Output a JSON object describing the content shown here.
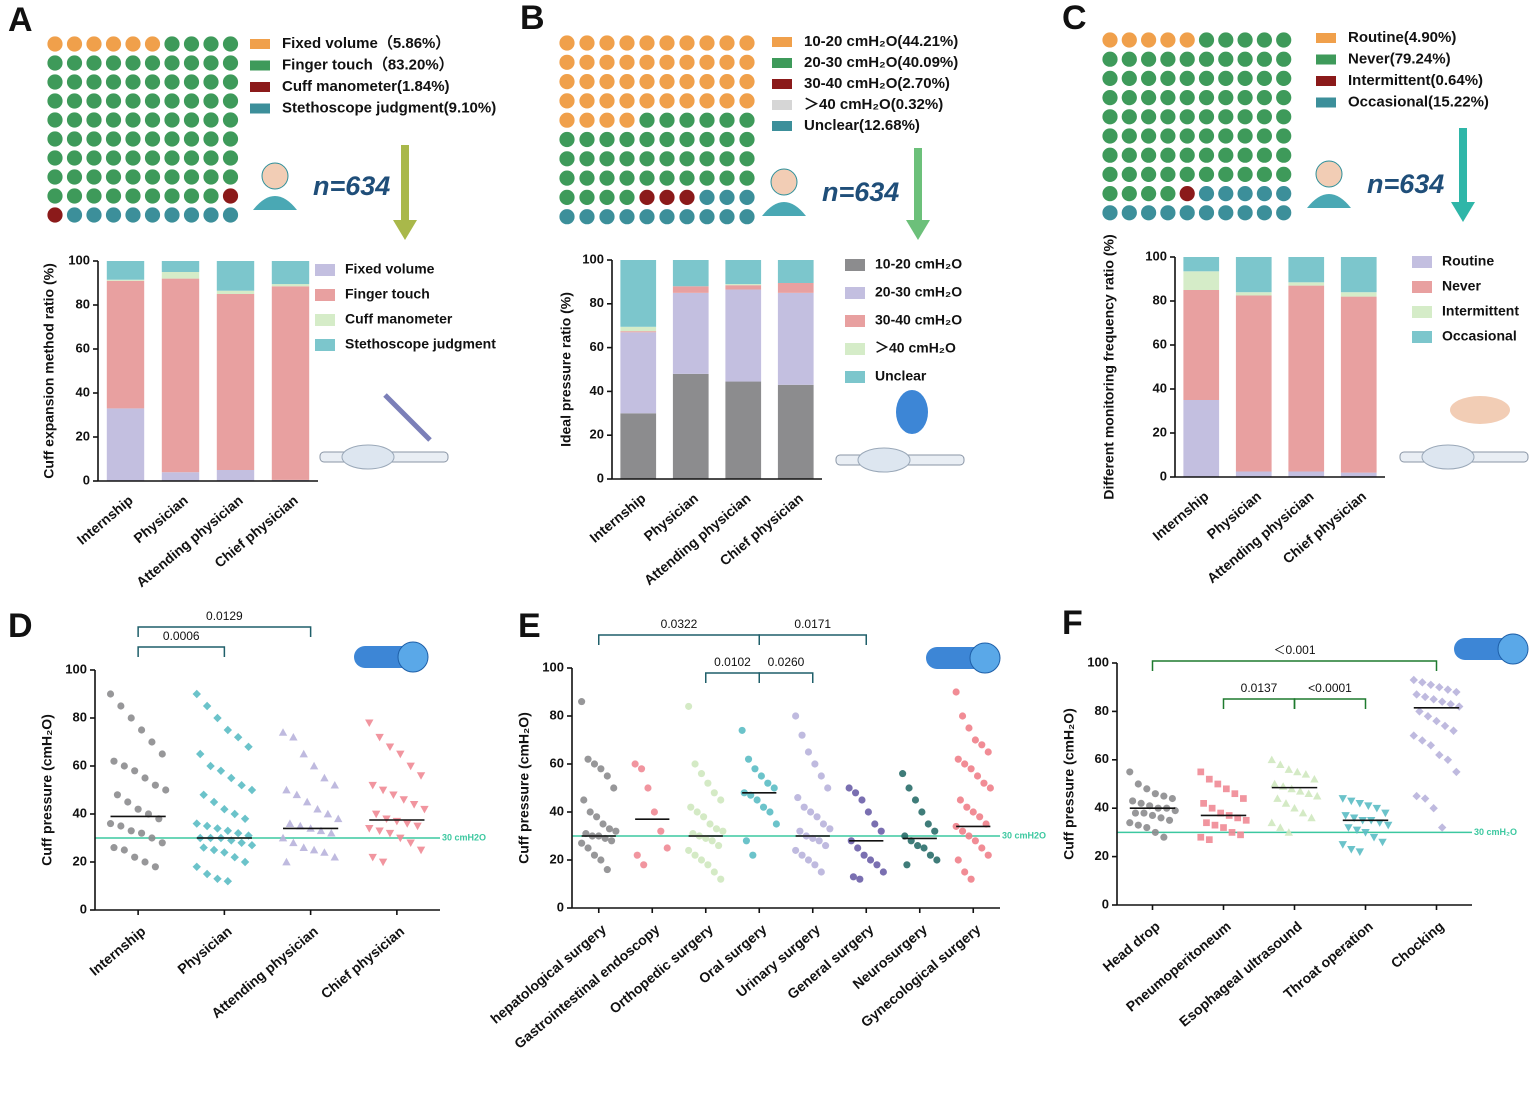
{
  "chart_data": [
    {
      "type": "waffle",
      "panel": "A",
      "annotation": "n=634",
      "categories": [
        "Fixed volume",
        "Finger touch",
        "Cuff manometer",
        "Stethoscope judgment"
      ],
      "values": [
        5.86,
        83.2,
        1.84,
        9.1
      ],
      "value_labels": [
        "（5.86%）",
        "（83.20%）",
        "(1.84%)",
        "(9.10%)"
      ],
      "colors": [
        "#f0a04b",
        "#3e9a5a",
        "#8b1a1a",
        "#3c8f9a"
      ]
    },
    {
      "type": "stacked_bar",
      "ylabel": "Cuff expansion method ratio (%)",
      "categories": [
        "Internship",
        "Physician",
        "Attending physician",
        "Chief physician"
      ],
      "ylim": [
        0,
        100
      ],
      "yticks": [
        0,
        20,
        40,
        60,
        80,
        100
      ],
      "series": [
        {
          "name": "Fixed volume",
          "color": "#c3bfe0",
          "values": [
            33,
            4,
            5,
            0.5
          ]
        },
        {
          "name": "Finger touch",
          "color": "#e8a0a0",
          "values": [
            58,
            88,
            80,
            88
          ]
        },
        {
          "name": "Cuff manometer",
          "color": "#d5ecc8",
          "values": [
            0.5,
            3,
            1.5,
            1
          ]
        },
        {
          "name": "Stethoscope judgment",
          "color": "#7cc6cc",
          "values": [
            8.5,
            5,
            13.5,
            10.5
          ]
        }
      ]
    },
    {
      "type": "waffle",
      "panel": "B",
      "annotation": "n=634",
      "categories": [
        "10-20 cmH₂O",
        "20-30 cmH₂O",
        "30-40 cmH₂O",
        "＞40 cmH₂O",
        "Unclear"
      ],
      "values": [
        44.21,
        40.09,
        2.7,
        0.32,
        12.68
      ],
      "value_labels": [
        "(44.21%)",
        "(40.09%)",
        "(2.70%)",
        "(0.32%)",
        "(12.68%)"
      ],
      "colors": [
        "#f0a04b",
        "#3e9a5a",
        "#8b1a1a",
        "#d6d6d6",
        "#3c8f9a"
      ]
    },
    {
      "type": "stacked_bar",
      "ylabel": "Ideal pressure ratio (%)",
      "categories": [
        "Internship",
        "Physician",
        "Attending physician",
        "Chief physician"
      ],
      "ylim": [
        0,
        100
      ],
      "yticks": [
        0,
        20,
        40,
        60,
        80,
        100
      ],
      "series": [
        {
          "name": "10-20 cmH₂O",
          "color": "#8c8c8e",
          "values": [
            30,
            48,
            44.5,
            43
          ]
        },
        {
          "name": "20-30 cmH₂O",
          "color": "#c3bfe0",
          "values": [
            37,
            37,
            42,
            42
          ]
        },
        {
          "name": "30-40 cmH₂O",
          "color": "#e8a0a0",
          "values": [
            0.5,
            3,
            2,
            4.5
          ]
        },
        {
          "name": "＞40 cmH₂O",
          "color": "#d5ecc8",
          "values": [
            2,
            0,
            0.5,
            0
          ]
        },
        {
          "name": "Unclear",
          "color": "#7cc6cc",
          "values": [
            30.5,
            12,
            11,
            10.5
          ]
        }
      ]
    },
    {
      "type": "waffle",
      "panel": "C",
      "annotation": "n=634",
      "categories": [
        "Routine",
        "Never",
        "Intermittent",
        "Occasional"
      ],
      "values": [
        4.9,
        79.24,
        0.64,
        15.22
      ],
      "value_labels": [
        "(4.90%)",
        "(79.24%)",
        "(0.64%)",
        "(15.22%)"
      ],
      "colors": [
        "#f0a04b",
        "#3e9a5a",
        "#8b1a1a",
        "#3c8f9a"
      ]
    },
    {
      "type": "stacked_bar",
      "ylabel": "Different monitoring frequency ratio (%)",
      "categories": [
        "Internship",
        "Physician",
        "Attending physician",
        "Chief physician"
      ],
      "ylim": [
        0,
        100
      ],
      "yticks": [
        0,
        20,
        40,
        60,
        80,
        100
      ],
      "series": [
        {
          "name": "Routine",
          "color": "#c3bfe0",
          "values": [
            35,
            2.5,
            2.5,
            2
          ]
        },
        {
          "name": "Never",
          "color": "#e8a0a0",
          "values": [
            50,
            80,
            84.5,
            80
          ]
        },
        {
          "name": "Intermittent",
          "color": "#d5ecc8",
          "values": [
            8.5,
            1.5,
            1.5,
            2
          ]
        },
        {
          "name": "Occasional",
          "color": "#7cc6cc",
          "values": [
            6.5,
            16,
            11.5,
            16
          ]
        }
      ]
    },
    {
      "type": "scatter",
      "panel": "D",
      "ylabel": "Cuff pressure (cmH₂O)",
      "ylim": [
        0,
        100
      ],
      "yticks": [
        0,
        20,
        40,
        60,
        80,
        100
      ],
      "reference": {
        "value": 30,
        "label": "30 cmH2O",
        "color": "#3cc8a0"
      },
      "brackets": [
        {
          "from": 0,
          "to": 1,
          "label": "0.0006"
        },
        {
          "from": 0,
          "to": 2,
          "label": "0.0129"
        }
      ],
      "bracket_color": "#1f5f6a",
      "series": [
        {
          "name": "Internship",
          "color": "#8c8c8e",
          "marker": "circle",
          "median": 39,
          "values": [
            90,
            85,
            80,
            75,
            70,
            65,
            62,
            60,
            58,
            55,
            52,
            50,
            48,
            45,
            42,
            40,
            38,
            36,
            35,
            33,
            32,
            30,
            28,
            26,
            25,
            22,
            20,
            18
          ]
        },
        {
          "name": "Physician",
          "color": "#5bbcc4",
          "marker": "diamond",
          "median": 30,
          "values": [
            90,
            85,
            80,
            75,
            72,
            68,
            65,
            60,
            58,
            55,
            52,
            50,
            48,
            45,
            42,
            40,
            38,
            36,
            35,
            34,
            33,
            32,
            31,
            30,
            30,
            30,
            29,
            28,
            27,
            26,
            25,
            24,
            22,
            20,
            18,
            15,
            13,
            12
          ]
        },
        {
          "name": "Attending physician",
          "color": "#b8b2dc",
          "marker": "triangle",
          "median": 34,
          "values": [
            74,
            72,
            65,
            60,
            55,
            52,
            50,
            48,
            45,
            42,
            40,
            38,
            36,
            35,
            34,
            33,
            32,
            30,
            28,
            26,
            25,
            24,
            22,
            20
          ]
        },
        {
          "name": "Chief physician",
          "color": "#f08a95",
          "marker": "triangle-down",
          "median": 37.5,
          "values": [
            78,
            72,
            68,
            65,
            60,
            56,
            52,
            50,
            48,
            46,
            44,
            42,
            40,
            38,
            37,
            36,
            35,
            34,
            33,
            32,
            30,
            28,
            25,
            22,
            20
          ]
        }
      ]
    },
    {
      "type": "scatter",
      "panel": "E",
      "ylabel": "Cuff pressure (cmH₂O)",
      "ylim": [
        0,
        100
      ],
      "yticks": [
        0,
        20,
        40,
        60,
        80,
        100
      ],
      "reference": {
        "value": 30,
        "label": "30 cmH2O",
        "color": "#3cc8a0"
      },
      "brackets": [
        {
          "from": 0,
          "to": 3,
          "label": "0.0322"
        },
        {
          "from": 3,
          "to": 5,
          "label": "0.0171"
        },
        {
          "from": 2,
          "to": 3,
          "label": "0.0102"
        },
        {
          "from": 3,
          "to": 4,
          "label": "0.0260"
        }
      ],
      "bracket_color": "#1f5f6a",
      "series": [
        {
          "name": "hepatological surgery",
          "color": "#8c8c8e",
          "marker": "circle",
          "median": 30,
          "values": [
            86,
            62,
            60,
            58,
            55,
            50,
            45,
            40,
            38,
            35,
            33,
            32,
            31,
            30,
            30,
            29,
            28,
            27,
            25,
            22,
            20,
            16
          ]
        },
        {
          "name": "Gastrointestinal endoscopy",
          "color": "#f08a95",
          "marker": "circle",
          "median": 37,
          "values": [
            60,
            58,
            50,
            40,
            32,
            25,
            22,
            18
          ]
        },
        {
          "name": "Orthopedic surgery",
          "color": "#cfe8bf",
          "marker": "circle",
          "median": 30,
          "values": [
            84,
            60,
            56,
            52,
            48,
            45,
            42,
            40,
            38,
            35,
            33,
            32,
            31,
            30,
            29,
            28,
            26,
            24,
            22,
            20,
            18,
            15,
            12
          ]
        },
        {
          "name": "Oral surgery",
          "color": "#5bbcc4",
          "marker": "circle",
          "median": 48,
          "values": [
            74,
            62,
            58,
            55,
            52,
            50,
            48,
            47,
            45,
            42,
            40,
            35,
            28,
            22
          ]
        },
        {
          "name": "Urinary surgery",
          "color": "#b8b2dc",
          "marker": "circle",
          "median": 30,
          "values": [
            80,
            72,
            65,
            60,
            55,
            50,
            46,
            42,
            40,
            38,
            35,
            33,
            32,
            30,
            29,
            28,
            26,
            24,
            22,
            20,
            18,
            15
          ]
        },
        {
          "name": "General surgery",
          "color": "#6b5fa8",
          "marker": "circle",
          "median": 28,
          "values": [
            50,
            48,
            45,
            40,
            35,
            32,
            28,
            25,
            22,
            20,
            18,
            15,
            13,
            12
          ]
        },
        {
          "name": "Neurosurgery",
          "color": "#2a6e6a",
          "marker": "circle",
          "median": 29,
          "values": [
            56,
            50,
            45,
            40,
            35,
            32,
            30,
            28,
            26,
            25,
            22,
            20,
            18
          ]
        },
        {
          "name": "Gynecological surgery",
          "color": "#f07f8a",
          "marker": "circle",
          "median": 34,
          "values": [
            90,
            80,
            75,
            70,
            68,
            65,
            62,
            60,
            58,
            55,
            52,
            50,
            45,
            42,
            40,
            38,
            35,
            34,
            32,
            30,
            28,
            25,
            22,
            20,
            15,
            12
          ]
        }
      ]
    },
    {
      "type": "scatter",
      "panel": "F",
      "ylabel": "Cuff pressure (cmH₂O)",
      "ylim": [
        0,
        100
      ],
      "yticks": [
        0,
        20,
        40,
        60,
        80,
        100
      ],
      "reference": {
        "value": 30,
        "label": "30 cmH₂O",
        "color": "#3cc8a0"
      },
      "brackets": [
        {
          "from": 0,
          "to": 4,
          "label": "＜0.001"
        },
        {
          "from": 1,
          "to": 2,
          "label": "0.0137"
        },
        {
          "from": 2,
          "to": 3,
          "label": "<0.0001"
        }
      ],
      "bracket_color": "#1e7a2e",
      "series": [
        {
          "name": "Head drop",
          "color": "#8c8c8e",
          "marker": "circle",
          "median": 40,
          "values": [
            55,
            50,
            48,
            46,
            45,
            44,
            43,
            42,
            41,
            40,
            40,
            39,
            38,
            38,
            37,
            36,
            35,
            34,
            33,
            32,
            30,
            28
          ]
        },
        {
          "name": "Pneumoperitoneum",
          "color": "#f08a95",
          "marker": "square",
          "median": 37,
          "values": [
            55,
            52,
            50,
            48,
            46,
            44,
            42,
            40,
            38,
            37,
            36,
            35,
            34,
            33,
            32,
            30,
            29,
            28,
            27
          ]
        },
        {
          "name": "Esophageal ultrasound",
          "color": "#cfe8bf",
          "marker": "triangle",
          "median": 48.5,
          "values": [
            60,
            58,
            56,
            55,
            54,
            52,
            50,
            49,
            48,
            47,
            46,
            45,
            44,
            42,
            40,
            38,
            36,
            34,
            32,
            30
          ]
        },
        {
          "name": "Throat operation",
          "color": "#5bbcc4",
          "marker": "triangle-down",
          "median": 35,
          "values": [
            44,
            43,
            42,
            41,
            40,
            38,
            37,
            36,
            35,
            35,
            34,
            33,
            32,
            31,
            30,
            28,
            26,
            25,
            23,
            22
          ]
        },
        {
          "name": "Chocking",
          "color": "#b8b2dc",
          "marker": "diamond",
          "median": 81.5,
          "values": [
            93,
            92,
            91,
            90,
            89,
            88,
            87,
            86,
            85,
            84,
            83,
            82,
            80,
            78,
            76,
            74,
            72,
            70,
            68,
            66,
            62,
            60,
            55,
            45,
            44,
            40,
            32
          ]
        }
      ]
    }
  ]
}
